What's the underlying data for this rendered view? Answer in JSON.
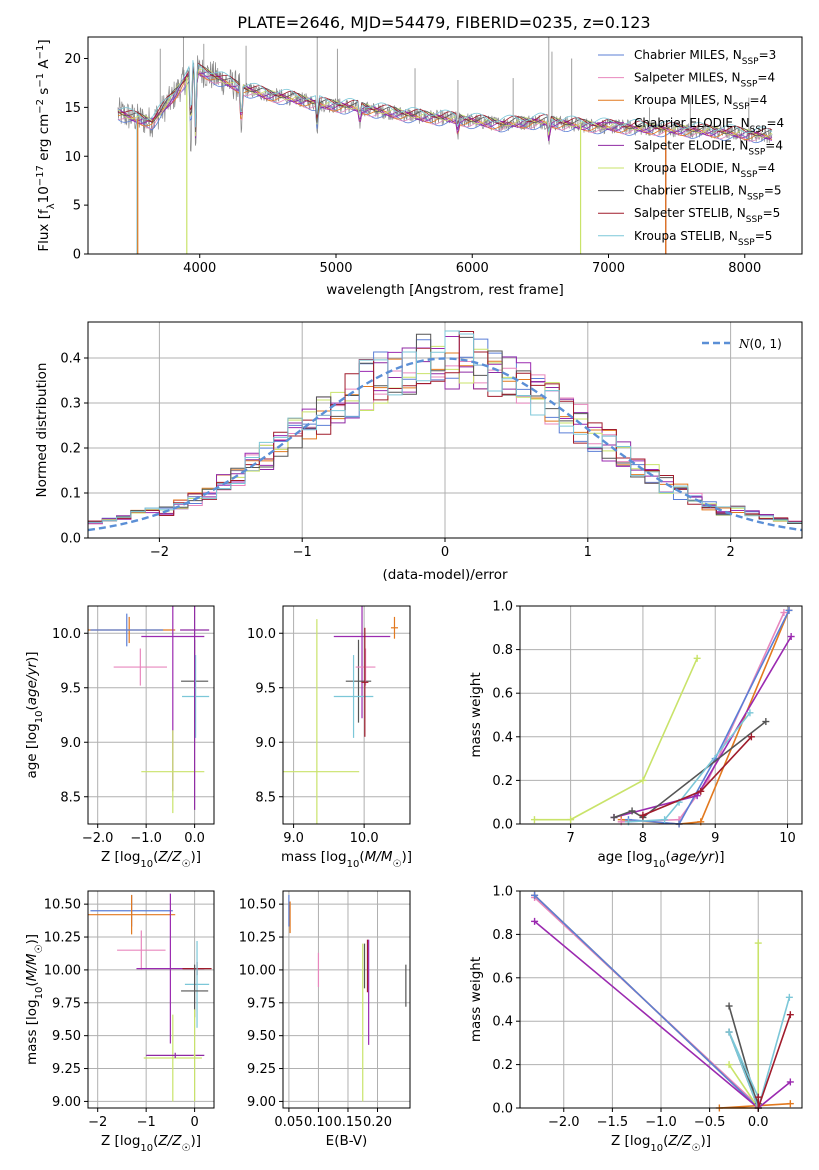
{
  "figure": {
    "title": "PLATE=2646, MJD=54479, FIBERID=0235, z=0.123"
  },
  "palette": {
    "chabrier_miles": "#5b7fd6",
    "salpeter_miles": "#e887bd",
    "kroupa_miles": "#e2791f",
    "chabrier_elodie": "#9b2ab0",
    "salpeter_elodie": "#8f2aa3",
    "kroupa_elodie": "#c9e36a",
    "chabrier_stelib": "#555555",
    "salpeter_stelib": "#a01c2c",
    "kroupa_stelib": "#7cc7d8",
    "grid": "#b0b0b0",
    "normal_curve": "#5b8fd6"
  },
  "chart_data": [
    {
      "id": "spectrum",
      "type": "line",
      "xlabel": "wavelength [Angstrom, rest frame]",
      "ylabel": "Flux [f_λ 10^-17 erg cm^-2 s^-1 A^-1]",
      "xlim": [
        3180,
        8420
      ],
      "ylim": [
        0,
        22.2
      ],
      "xticks": [
        4000,
        5000,
        6000,
        7000,
        8000
      ],
      "yticks": [
        0,
        5,
        10,
        15,
        20
      ],
      "grid": false,
      "legend_position": "top-right",
      "series": [
        {
          "name": "Chabrier MILES, N_SSP=3",
          "color_key": "chabrier_miles"
        },
        {
          "name": "Salpeter MILES, N_SSP=4",
          "color_key": "salpeter_miles"
        },
        {
          "name": "Kroupa MILES, N_SSP=4",
          "color_key": "kroupa_miles"
        },
        {
          "name": "Chabrier ELODIE, N_SSP=4",
          "color_key": "chabrier_elodie"
        },
        {
          "name": "Salpeter ELODIE, N_SSP=4",
          "color_key": "salpeter_elodie"
        },
        {
          "name": "Kroupa ELODIE, N_SSP=4",
          "color_key": "kroupa_elodie"
        },
        {
          "name": "Chabrier STELIB, N_SSP=5",
          "color_key": "chabrier_stelib"
        },
        {
          "name": "Salpeter STELIB, N_SSP=5",
          "color_key": "salpeter_stelib"
        },
        {
          "name": "Kroupa STELIB, N_SSP=5",
          "color_key": "kroupa_stelib"
        }
      ],
      "continuum": {
        "x": [
          3400,
          3500,
          3650,
          3800,
          3950,
          4100,
          4300,
          4500,
          4700,
          4900,
          5100,
          5300,
          5600,
          5900,
          6200,
          6500,
          6800,
          7100,
          7400,
          7700,
          8000,
          8200
        ],
        "y": [
          14.5,
          14.0,
          13.5,
          16.0,
          19.0,
          18.2,
          17.0,
          16.3,
          15.9,
          15.3,
          15.1,
          14.7,
          14.1,
          13.8,
          13.3,
          13.6,
          13.2,
          13.0,
          12.8,
          12.6,
          12.3,
          12.1
        ]
      },
      "absorption_features": [
        {
          "x": 3935,
          "y": 9.5
        },
        {
          "x": 3970,
          "y": 10.5
        },
        {
          "x": 4305,
          "y": 11.5
        },
        {
          "x": 4862,
          "y": 12.5
        },
        {
          "x": 5175,
          "y": 13.0
        },
        {
          "x": 5894,
          "y": 12.0
        },
        {
          "x": 6563,
          "y": 11.0
        }
      ],
      "template_edges": [
        {
          "color_key": "kroupa_stelib",
          "x": 3540,
          "drop_to": 0
        },
        {
          "color_key": "kroupa_miles",
          "x": 3545,
          "drop_to": 0
        },
        {
          "color_key": "kroupa_elodie",
          "x": 3905,
          "drop_to": 0
        },
        {
          "color_key": "kroupa_elodie",
          "x": 6795,
          "drop_to": 0
        },
        {
          "color_key": "salpeter_stelib",
          "x": 7420,
          "drop_to": 0
        },
        {
          "color_key": "kroupa_miles",
          "x": 7420,
          "drop_to": 0
        }
      ],
      "observed_spikes": [
        {
          "x": 3710,
          "y": 21.0
        },
        {
          "x": 3880,
          "y": 22.2
        },
        {
          "x": 4030,
          "y": 21.5
        },
        {
          "x": 4340,
          "y": 21.3
        },
        {
          "x": 4862,
          "y": 22.2
        },
        {
          "x": 5010,
          "y": 21.0
        },
        {
          "x": 5580,
          "y": 19.0
        },
        {
          "x": 5895,
          "y": 17.8
        },
        {
          "x": 6300,
          "y": 18.0
        },
        {
          "x": 6562,
          "y": 22.2
        },
        {
          "x": 6585,
          "y": 20.7
        },
        {
          "x": 6730,
          "y": 20.0
        },
        {
          "x": 7300,
          "y": 15.0
        },
        {
          "x": 7600,
          "y": 16.0
        },
        {
          "x": 8030,
          "y": 16.0
        }
      ]
    },
    {
      "id": "residuals",
      "type": "histogram",
      "xlabel": "(data-model)/error",
      "ylabel": "Normed distribution",
      "xlim": [
        -2.5,
        2.5
      ],
      "ylim": [
        0,
        0.48
      ],
      "xticks": [
        -2,
        -1,
        0,
        1,
        2
      ],
      "yticks": [
        0.0,
        0.1,
        0.2,
        0.3,
        0.4
      ],
      "grid": true,
      "legend_position": "top-right",
      "normal_curve": {
        "name": "N(0, 1)",
        "mean": 0,
        "sigma": 1
      },
      "bin_width": 0.1,
      "bin_start": -2.5
    },
    {
      "id": "age_vs_Z",
      "type": "errorbar",
      "xlabel": "Z [log10(Z/Z☉)]",
      "ylabel": "age  [log10(age/yr)]",
      "xlim": [
        -2.2,
        0.4
      ],
      "ylim": [
        8.25,
        10.25
      ],
      "xticks": [
        -2,
        -1,
        0
      ],
      "yticks": [
        8.5,
        9.0,
        9.5,
        10.0
      ],
      "grid": true,
      "points": [
        {
          "color_key": "kroupa_miles",
          "x": -1.35,
          "y": 10.03,
          "xerr": 0.95,
          "yerr": 0.12
        },
        {
          "color_key": "chabrier_miles",
          "x": -1.4,
          "y": 10.03,
          "xerr": 0.75,
          "yerr": 0.15
        },
        {
          "color_key": "chabrier_elodie",
          "x": -0.45,
          "y": 9.97,
          "xerr": 0.65,
          "yerr": 1.42
        },
        {
          "color_key": "salpeter_miles",
          "x": -1.12,
          "y": 9.69,
          "xerr": 0.55,
          "yerr": 0.17
        },
        {
          "color_key": "chabrier_stelib",
          "x": 0.0,
          "y": 9.56,
          "xerr": 0.28,
          "yerr": 0.38
        },
        {
          "color_key": "kroupa_stelib",
          "x": 0.02,
          "y": 9.42,
          "xerr": 0.28,
          "yerr": 0.38
        },
        {
          "color_key": "kroupa_elodie",
          "x": -0.45,
          "y": 8.73,
          "xerr": 0.65,
          "yerr": 0.38
        },
        {
          "color_key": "salpeter_elodie",
          "x": 0.0,
          "y": 10.03,
          "xerr": 0.3,
          "yerr": 1.65
        }
      ]
    },
    {
      "id": "age_vs_mass",
      "type": "errorbar",
      "xlabel": "mass [log10(M/M☉)]",
      "ylabel": "",
      "xlim": [
        8.85,
        10.65
      ],
      "ylim": [
        8.25,
        10.25
      ],
      "xticks": [
        9,
        10
      ],
      "yticks": [
        8.5,
        9.0,
        9.5,
        10.0
      ],
      "grid": true,
      "points": [
        {
          "color_key": "kroupa_elodie",
          "x": 9.33,
          "y": 8.73,
          "xerr": 0.6,
          "yerr": 1.4
        },
        {
          "color_key": "chabrier_elodie",
          "x": 9.97,
          "y": 9.97,
          "xerr": 0.4,
          "yerr": 0.75
        },
        {
          "color_key": "kroupa_miles",
          "x": 10.43,
          "y": 10.05,
          "xerr": 0.05,
          "yerr": 0.1
        },
        {
          "color_key": "chabrier_stelib",
          "x": 9.92,
          "y": 9.56,
          "xerr": 0.18,
          "yerr": 0.38
        },
        {
          "color_key": "salpeter_miles",
          "x": 10.02,
          "y": 9.69,
          "xerr": 0.14,
          "yerr": 0.17
        },
        {
          "color_key": "kroupa_stelib",
          "x": 9.85,
          "y": 9.42,
          "xerr": 0.28,
          "yerr": 0.38
        },
        {
          "color_key": "salpeter_stelib",
          "x": 10.01,
          "y": 9.55,
          "xerr": 0.05,
          "yerr": 0.5
        }
      ]
    },
    {
      "id": "weights_vs_age",
      "type": "line",
      "xlabel": "age  [log10(age/yr)]",
      "ylabel": "mass weight",
      "xlim": [
        6.3,
        10.2
      ],
      "ylim": [
        0.0,
        1.0
      ],
      "xticks": [
        7,
        8,
        9,
        10
      ],
      "yticks": [
        0.0,
        0.2,
        0.4,
        0.6,
        0.8,
        1.0
      ],
      "grid": true,
      "series": [
        {
          "color_key": "kroupa_elodie",
          "x": [
            6.5,
            7.0,
            8.0,
            8.75
          ],
          "y": [
            0.02,
            0.02,
            0.2,
            0.76
          ]
        },
        {
          "color_key": "kroupa_miles",
          "x": [
            7.7,
            8.5,
            8.8,
            10.02
          ],
          "y": [
            0.02,
            0.0,
            0.01,
            0.98
          ]
        },
        {
          "color_key": "salpeter_miles",
          "x": [
            7.7,
            8.5,
            8.9,
            9.95
          ],
          "y": [
            0.01,
            0.02,
            0.2,
            0.97
          ]
        },
        {
          "color_key": "chabrier_miles",
          "x": [
            7.8,
            8.5,
            9.0,
            10.02
          ],
          "y": [
            0.02,
            0.0,
            0.3,
            0.98
          ]
        },
        {
          "color_key": "chabrier_elodie",
          "x": [
            7.6,
            8.75,
            10.05
          ],
          "y": [
            0.03,
            0.13,
            0.86
          ]
        },
        {
          "color_key": "chabrier_stelib",
          "x": [
            7.6,
            7.85,
            8.0,
            9.7
          ],
          "y": [
            0.03,
            0.06,
            0.03,
            0.47
          ]
        },
        {
          "color_key": "kroupa_stelib",
          "x": [
            7.8,
            8.3,
            8.5,
            9.48
          ],
          "y": [
            0.01,
            0.02,
            0.1,
            0.51
          ]
        },
        {
          "color_key": "salpeter_stelib",
          "x": [
            8.0,
            8.8,
            9.5
          ],
          "y": [
            0.04,
            0.15,
            0.4
          ]
        }
      ]
    },
    {
      "id": "mass_vs_Z",
      "type": "errorbar",
      "xlabel": "Z [log10(Z/Z☉)]",
      "ylabel": "mass [log10(M/M☉)]",
      "xlim": [
        -2.2,
        0.4
      ],
      "ylim": [
        8.95,
        10.6
      ],
      "xticks": [
        -2,
        -1,
        0
      ],
      "yticks": [
        9.0,
        9.25,
        9.5,
        9.75,
        10.0,
        10.25,
        10.5
      ],
      "grid": true,
      "points": [
        {
          "color_key": "chabrier_miles",
          "x": -1.3,
          "y": 10.45,
          "xerr": 0.85,
          "yerr": 0.12
        },
        {
          "color_key": "kroupa_miles",
          "x": -1.3,
          "y": 10.42,
          "xerr": 0.9,
          "yerr": 0.15
        },
        {
          "color_key": "salpeter_miles",
          "x": -1.1,
          "y": 10.15,
          "xerr": 0.5,
          "yerr": 0.15
        },
        {
          "color_key": "chabrier_elodie",
          "x": -0.5,
          "y": 10.01,
          "xerr": 0.7,
          "yerr": 0.57
        },
        {
          "color_key": "salpeter_stelib",
          "x": 0.05,
          "y": 10.01,
          "xerr": 0.3,
          "yerr": 0.05
        },
        {
          "color_key": "kroupa_stelib",
          "x": 0.05,
          "y": 9.89,
          "xerr": 0.25,
          "yerr": 0.33
        },
        {
          "color_key": "chabrier_stelib",
          "x": 0.0,
          "y": 9.84,
          "xerr": 0.28,
          "yerr": 0.2
        },
        {
          "color_key": "kroupa_elodie",
          "x": -0.45,
          "y": 9.33,
          "xerr": 0.6,
          "yerr": 0.33
        },
        {
          "color_key": "salpeter_elodie",
          "x": -0.4,
          "y": 9.35,
          "xerr": 0.6,
          "yerr": 0.02
        },
        {
          "color_key": "kroupa_elodie",
          "x": 0.0,
          "y": 9.35,
          "xerr": 0.02,
          "yerr": 0.35
        }
      ]
    },
    {
      "id": "mass_vs_EBV",
      "type": "errorbar",
      "xlabel": "E(B-V)",
      "ylabel": "",
      "xlim": [
        0.04,
        0.255
      ],
      "ylim": [
        8.95,
        10.6
      ],
      "xticks": [
        0.05,
        0.1,
        0.15,
        0.2
      ],
      "yticks": [
        9.0,
        9.25,
        9.5,
        9.75,
        10.0,
        10.25,
        10.5
      ],
      "grid": true,
      "points": [
        {
          "color_key": "chabrier_miles",
          "x": 0.05,
          "y": 10.45,
          "xerr": 0,
          "yerr": 0.12
        },
        {
          "color_key": "kroupa_miles",
          "x": 0.052,
          "y": 10.4,
          "xerr": 0,
          "yerr": 0.12
        },
        {
          "color_key": "salpeter_miles",
          "x": 0.1,
          "y": 10.0,
          "xerr": 0,
          "yerr": 0.13
        },
        {
          "color_key": "kroupa_elodie",
          "x": 0.175,
          "y": 9.6,
          "xerr": 0,
          "yerr": 0.6
        },
        {
          "color_key": "chabrier_stelib",
          "x": 0.178,
          "y": 10.03,
          "xerr": 0,
          "yerr": 0.17
        },
        {
          "color_key": "chabrier_elodie",
          "x": 0.185,
          "y": 9.83,
          "xerr": 0,
          "yerr": 0.4
        },
        {
          "color_key": "salpeter_stelib",
          "x": 0.183,
          "y": 10.03,
          "xerr": 0,
          "yerr": 0.2
        },
        {
          "color_key": "chabrier_stelib",
          "x": 0.248,
          "y": 9.88,
          "xerr": 0,
          "yerr": 0.16
        }
      ]
    },
    {
      "id": "weights_vs_Z",
      "type": "line",
      "xlabel": "Z [log10(Z/Z☉)]",
      "ylabel": "mass weight",
      "xlim": [
        -2.45,
        0.45
      ],
      "ylim": [
        0.0,
        1.0
      ],
      "xticks": [
        -2.0,
        -1.5,
        -1.0,
        -0.5,
        0.0
      ],
      "yticks": [
        0.0,
        0.2,
        0.4,
        0.6,
        0.8,
        1.0
      ],
      "grid": true,
      "series": [
        {
          "color_key": "salpeter_miles",
          "x": [
            -2.3,
            0.0
          ],
          "y": [
            0.97,
            0.01
          ]
        },
        {
          "color_key": "kroupa_miles",
          "x": [
            -2.3,
            0.0,
            -0.4,
            0.33
          ],
          "y": [
            0.98,
            0.0,
            0.0,
            0.02
          ]
        },
        {
          "color_key": "chabrier_miles",
          "x": [
            -2.3,
            0.0
          ],
          "y": [
            0.98,
            0.0
          ]
        },
        {
          "color_key": "chabrier_elodie",
          "x": [
            -2.3,
            0.0,
            0.33
          ],
          "y": [
            0.86,
            0.0,
            0.12
          ]
        },
        {
          "color_key": "kroupa_elodie",
          "x": [
            0.0,
            0.0,
            -0.3,
            0.0
          ],
          "y": [
            0.76,
            0.0,
            0.2,
            0.0
          ]
        },
        {
          "color_key": "chabrier_stelib",
          "x": [
            -0.3,
            0.0,
            -0.3,
            0.0
          ],
          "y": [
            0.47,
            0.0,
            0.35,
            0.02
          ]
        },
        {
          "color_key": "kroupa_stelib",
          "x": [
            0.32,
            0.0,
            -0.3,
            0.0
          ],
          "y": [
            0.51,
            0.0,
            0.35,
            0.05
          ]
        },
        {
          "color_key": "salpeter_stelib",
          "x": [
            0.33,
            0.0,
            0.0
          ],
          "y": [
            0.43,
            0.0,
            0.05
          ]
        }
      ]
    }
  ]
}
